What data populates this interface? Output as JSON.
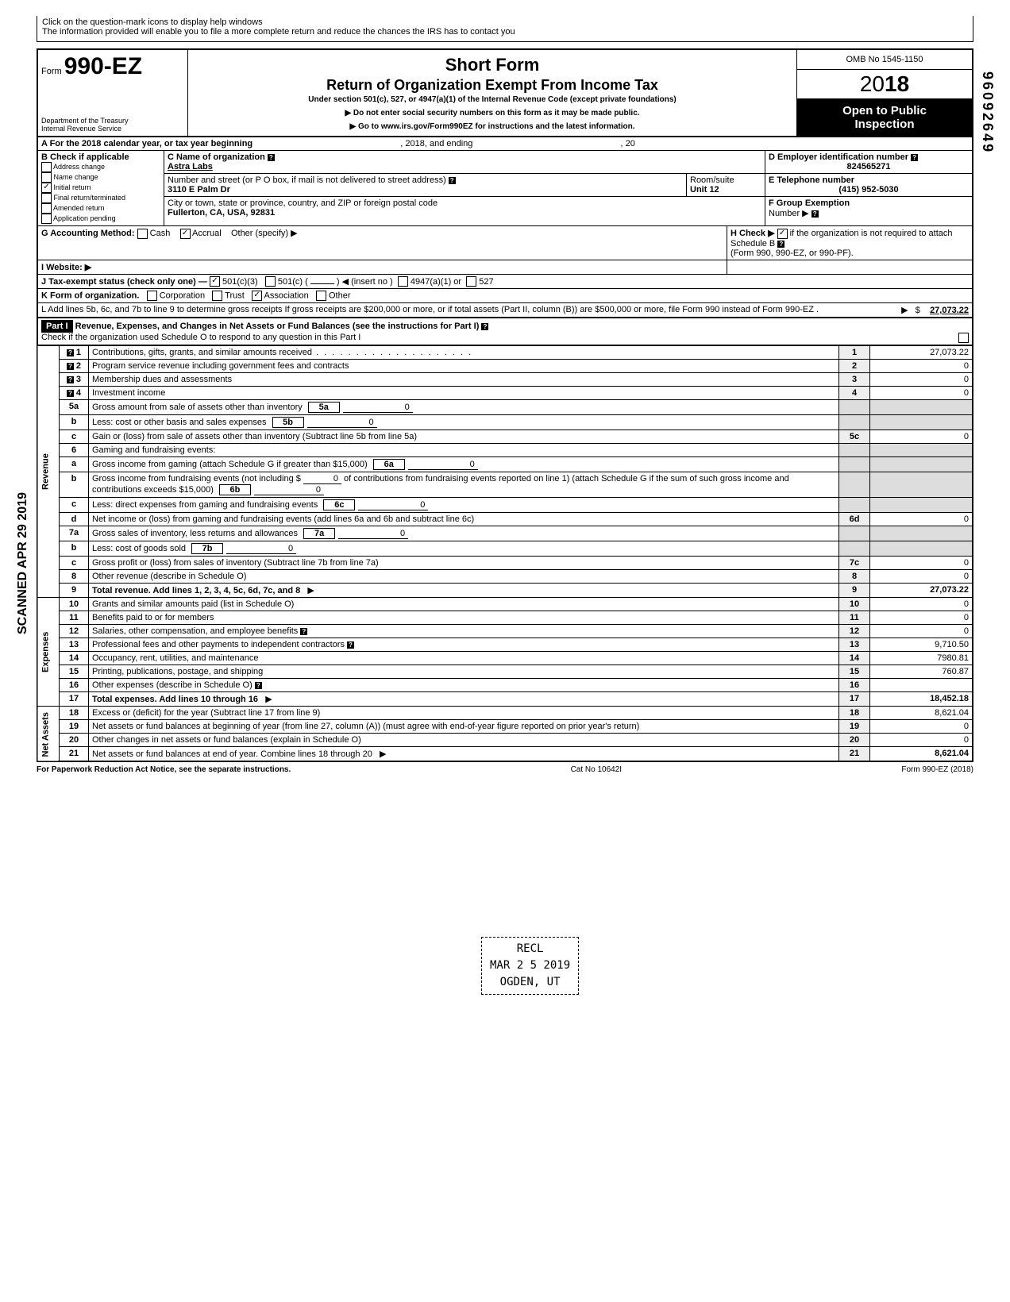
{
  "top_note_1": "Click on the question-mark icons to display help windows",
  "top_note_2": "The information provided will enable you to file a more complete return and reduce the chances the IRS has to contact you",
  "form_label": "Form",
  "form_number": "990-EZ",
  "dept_1": "Department of the Treasury",
  "dept_2": "Internal Revenue Service",
  "title_1": "Short Form",
  "title_2": "Return of Organization Exempt From Income Tax",
  "subtitle": "Under section 501(c), 527, or 4947(a)(1) of the Internal Revenue Code (except private foundations)",
  "warn_line": "▶ Do not enter social security numbers on this form as it may be made public.",
  "goto_line": "▶ Go to www.irs.gov/Form990EZ for instructions and the latest information.",
  "omb": "OMB No 1545-1150",
  "year_prefix": "20",
  "year_bold": "18",
  "open_public_1": "Open to Public",
  "open_public_2": "Inspection",
  "side_code": "96092649",
  "scanned_text": "SCANNED APR 29 2019",
  "line_A": "A  For the 2018 calendar year, or tax year beginning",
  "line_A_mid": ", 2018, and ending",
  "line_A_end": ", 20",
  "B_label": "B  Check if applicable",
  "B_opts": [
    "Address change",
    "Name change",
    "Initial return",
    "Final return/terminated",
    "Amended return",
    "Application pending"
  ],
  "B_checked_index": 2,
  "C_label": "C  Name of organization",
  "C_value": "Astra Labs",
  "C_addr_label": "Number and street (or P O  box, if mail is not delivered to street address)",
  "C_addr": "3110 E Palm Dr",
  "C_room_label": "Room/suite",
  "C_room": "Unit 12",
  "C_city_label": "City or town, state or province, country, and ZIP or foreign postal code",
  "C_city": "Fullerton, CA, USA, 92831",
  "D_label": "D Employer identification number",
  "D_value": "824565271",
  "E_label": "E Telephone number",
  "E_value": "(415) 952-5030",
  "F_label": "F Group Exemption",
  "F_sub": "Number ▶",
  "G_label": "G  Accounting Method:",
  "G_cash": "Cash",
  "G_accrual": "Accrual",
  "G_other": "Other (specify) ▶",
  "H_label": "H  Check ▶",
  "H_text": "if the organization is not required to attach Schedule B",
  "H_sub": "(Form 990, 990-EZ, or 990-PF).",
  "I_label": "I   Website: ▶",
  "J_label": "J  Tax-exempt status (check only one) —",
  "J_501c3": "501(c)(3)",
  "J_501c": "501(c) (",
  "J_insert": ") ◀ (insert no )",
  "J_4947": "4947(a)(1) or",
  "J_527": "527",
  "K_label": "K  Form of organization.",
  "K_corp": "Corporation",
  "K_trust": "Trust",
  "K_assoc": "Association",
  "K_other": "Other",
  "L_text": "L  Add lines 5b, 6c, and 7b to line 9 to determine gross receipts  If gross receipts are $200,000 or more, or if total assets (Part II, column (B)) are $500,000 or more, file Form 990 instead of Form 990-EZ .",
  "L_amount": "27,073.22",
  "part1_label": "Part I",
  "part1_title": "Revenue, Expenses, and Changes in Net Assets or Fund Balances (see the instructions for Part I)",
  "part1_check": "Check if the organization used Schedule O to respond to any question in this Part I",
  "vtab_revenue": "Revenue",
  "vtab_expenses": "Expenses",
  "vtab_netassets": "Net Assets",
  "lines": {
    "1": {
      "no": "1",
      "desc": "Contributions, gifts, grants, and similar amounts received",
      "box": "1",
      "amt": "27,073.22"
    },
    "2": {
      "no": "2",
      "desc": "Program service revenue including government fees and contracts",
      "box": "2",
      "amt": "0"
    },
    "3": {
      "no": "3",
      "desc": "Membership dues and assessments",
      "box": "3",
      "amt": "0"
    },
    "4": {
      "no": "4",
      "desc": "Investment income",
      "box": "4",
      "amt": "0"
    },
    "5a": {
      "no": "5a",
      "desc": "Gross amount from sale of assets other than inventory",
      "innerbox": "5a",
      "innerval": "0"
    },
    "5b": {
      "no": "b",
      "desc": "Less: cost or other basis and sales expenses",
      "innerbox": "5b",
      "innerval": "0"
    },
    "5c": {
      "no": "c",
      "desc": "Gain or (loss) from sale of assets other than inventory (Subtract line 5b from line 5a)",
      "box": "5c",
      "amt": "0"
    },
    "6": {
      "no": "6",
      "desc": "Gaming and fundraising events:"
    },
    "6a": {
      "no": "a",
      "desc": "Gross income from gaming (attach Schedule G if greater than $15,000)",
      "innerbox": "6a",
      "innerval": "0"
    },
    "6b": {
      "no": "b",
      "desc_pre": "Gross income from fundraising events (not including  $",
      "contrib": "0",
      "desc_post": "of contributions from fundraising events reported on line 1) (attach Schedule G if the sum of such gross income and contributions exceeds $15,000)",
      "innerbox": "6b",
      "innerval": "0"
    },
    "6c": {
      "no": "c",
      "desc": "Less: direct expenses from gaming and fundraising events",
      "innerbox": "6c",
      "innerval": "0"
    },
    "6d": {
      "no": "d",
      "desc": "Net income or (loss) from gaming and fundraising events (add lines 6a and 6b and subtract line 6c)",
      "box": "6d",
      "amt": "0"
    },
    "7a": {
      "no": "7a",
      "desc": "Gross sales of inventory, less returns and allowances",
      "innerbox": "7a",
      "innerval": "0"
    },
    "7b": {
      "no": "b",
      "desc": "Less: cost of goods sold",
      "innerbox": "7b",
      "innerval": "0"
    },
    "7c": {
      "no": "c",
      "desc": "Gross profit or (loss) from sales of inventory (Subtract line 7b from line 7a)",
      "box": "7c",
      "amt": "0"
    },
    "8": {
      "no": "8",
      "desc": "Other revenue (describe in Schedule O)",
      "box": "8",
      "amt": "0"
    },
    "9": {
      "no": "9",
      "desc": "Total revenue. Add lines 1, 2, 3, 4, 5c, 6d, 7c, and 8",
      "box": "9",
      "amt": "27,073.22",
      "bold": true
    },
    "10": {
      "no": "10",
      "desc": "Grants and similar amounts paid (list in Schedule O)",
      "box": "10",
      "amt": "0"
    },
    "11": {
      "no": "11",
      "desc": "Benefits paid to or for members",
      "box": "11",
      "amt": "0"
    },
    "12": {
      "no": "12",
      "desc": "Salaries, other compensation, and employee benefits",
      "box": "12",
      "amt": "0"
    },
    "13": {
      "no": "13",
      "desc": "Professional fees and other payments to independent contractors",
      "box": "13",
      "amt": "9,710.50"
    },
    "14": {
      "no": "14",
      "desc": "Occupancy, rent, utilities, and maintenance",
      "box": "14",
      "amt": "7980.81"
    },
    "15": {
      "no": "15",
      "desc": "Printing, publications, postage, and shipping",
      "box": "15",
      "amt": "760.87"
    },
    "16": {
      "no": "16",
      "desc": "Other expenses (describe in Schedule O)",
      "box": "16",
      "amt": ""
    },
    "17": {
      "no": "17",
      "desc": "Total expenses. Add lines 10 through 16",
      "box": "17",
      "amt": "18,452.18",
      "bold": true
    },
    "18": {
      "no": "18",
      "desc": "Excess or (deficit) for the year (Subtract line 17 from line 9)",
      "box": "18",
      "amt": "8,621.04"
    },
    "19": {
      "no": "19",
      "desc": "Net assets or fund balances at beginning of year (from line 27, column (A)) (must agree with end-of-year figure reported on prior year's return)",
      "box": "19",
      "amt": "0"
    },
    "20": {
      "no": "20",
      "desc": "Other changes in net assets or fund balances (explain in Schedule O)",
      "box": "20",
      "amt": "0"
    },
    "21": {
      "no": "21",
      "desc": "Net assets or fund balances at end of year. Combine lines 18 through 20",
      "box": "21",
      "amt": "8,621.04"
    }
  },
  "recd_stamp_1": "RECL",
  "recd_stamp_2": "MAR 2 5 2019",
  "recd_stamp_3": "OGDEN, UT",
  "footer_left": "For Paperwork Reduction Act Notice, see the separate instructions.",
  "footer_mid": "Cat No  10642I",
  "footer_right": "Form 990-EZ (2018)",
  "colors": {
    "ink": "#000000",
    "bg": "#ffffff",
    "shade": "#dddddd"
  }
}
